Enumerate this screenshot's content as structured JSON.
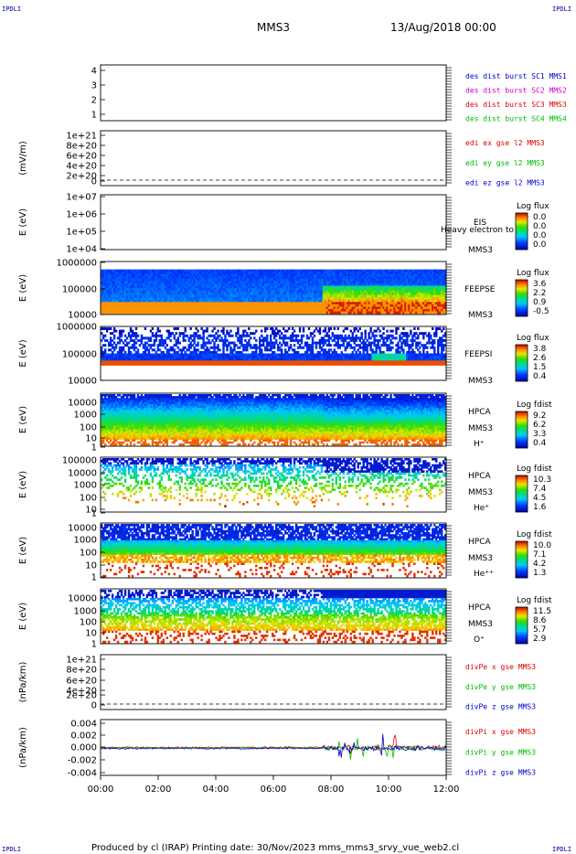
{
  "header": {
    "corner_left_top": "IPDLI",
    "corner_right_top": "IPDLI",
    "corner_left_bottom": "IPDLI",
    "corner_right_bottom": "IPDLI",
    "spacecraft": "MMS3",
    "datetime": "13/Aug/2018 00:00"
  },
  "footer": {
    "text": "Produced by cl (IRAP)   Printing date: 30/Nov/2023   mms_mms3_srvy_vue_web2.cl"
  },
  "colors": {
    "sc1": "#0000cc",
    "sc2": "#cc00cc",
    "sc3": "#dd0000",
    "sc4": "#00bb00",
    "x": "#dd0000",
    "y": "#00bb00",
    "z": "#0000cc",
    "frame": "#000000"
  },
  "chart_data": [
    {
      "id": "p1",
      "type": "line",
      "ylabel": "",
      "yticks": [
        "4",
        "3",
        "2",
        "1"
      ],
      "legend": [
        {
          "label": "des dist burst SC1 MMS1",
          "color": "#0000cc"
        },
        {
          "label": "des dist burst SC2 MMS2",
          "color": "#cc00cc"
        },
        {
          "label": "des dist burst SC3 MMS3",
          "color": "#dd0000"
        },
        {
          "label": "des dist burst SC4 MMS4",
          "color": "#00bb00"
        }
      ]
    },
    {
      "id": "p2",
      "type": "line",
      "ylabel": "(mV/m)",
      "yticks": [
        "1e+21",
        "8e+20",
        "6e+20",
        "4e+20",
        "2e+20",
        "0"
      ],
      "legend": [
        {
          "label": "edi ex gse l2 MMS3",
          "color": "#dd0000"
        },
        {
          "label": "edi ey gse l2 MMS3",
          "color": "#00bb00"
        },
        {
          "label": "edi ez gse l2 MMS3",
          "color": "#0000cc"
        }
      ]
    },
    {
      "id": "p3",
      "type": "heatmap",
      "ylabel": "E (eV)",
      "yticks": [
        "1e+07",
        "1e+06",
        "1e+05",
        "1e+04"
      ],
      "side_labels": [
        "EIS",
        "MMS3"
      ],
      "overlay": "Heavy electron to",
      "colorbar": {
        "title": "Log flux",
        "ticks": [
          "0.0",
          "0.0",
          "0.0",
          "0.0"
        ]
      }
    },
    {
      "id": "p4",
      "type": "heatmap",
      "ylabel": "E (eV)",
      "yticks": [
        "1000000",
        "100000",
        "10000"
      ],
      "side_labels": [
        "FEEPSE",
        "MMS3"
      ],
      "colorbar": {
        "title": "Log flux",
        "ticks": [
          "3.6",
          "2.2",
          "0.9",
          "-0.5"
        ]
      }
    },
    {
      "id": "p5",
      "type": "heatmap",
      "ylabel": "E (eV)",
      "yticks": [
        "1000000",
        "100000",
        "10000"
      ],
      "side_labels": [
        "FEEPSI",
        "MMS3"
      ],
      "colorbar": {
        "title": "Log flux",
        "ticks": [
          "3.8",
          "2.6",
          "1.5",
          "0.4"
        ]
      }
    },
    {
      "id": "p6",
      "type": "heatmap",
      "ylabel": "E (eV)",
      "yticks": [
        "10000",
        "1000",
        "100",
        "10",
        "1"
      ],
      "side_labels": [
        "HPCA",
        "MMS3",
        "H⁺"
      ],
      "colorbar": {
        "title": "Log fdist",
        "ticks": [
          "9.2",
          "6.2",
          "3.3",
          "0.4"
        ]
      }
    },
    {
      "id": "p7",
      "type": "heatmap",
      "ylabel": "E (eV)",
      "yticks": [
        "100000",
        "10000",
        "1000",
        "100",
        "10",
        "1"
      ],
      "side_labels": [
        "HPCA",
        "MMS3",
        "He⁺"
      ],
      "colorbar": {
        "title": "Log fdist",
        "ticks": [
          "10.3",
          "7.4",
          "4.5",
          "1.6"
        ]
      }
    },
    {
      "id": "p8",
      "type": "heatmap",
      "ylabel": "E (eV)",
      "yticks": [
        "10000",
        "1000",
        "100",
        "10",
        "1"
      ],
      "side_labels": [
        "HPCA",
        "MMS3",
        "He⁺⁺"
      ],
      "colorbar": {
        "title": "Log fdist",
        "ticks": [
          "10.0",
          "7.1",
          "4.2",
          "1.3"
        ]
      }
    },
    {
      "id": "p9",
      "type": "heatmap",
      "ylabel": "E (eV)",
      "yticks": [
        "10000",
        "1000",
        "100",
        "10",
        "1"
      ],
      "side_labels": [
        "HPCA",
        "MMS3",
        "O⁺"
      ],
      "colorbar": {
        "title": "Log fdist",
        "ticks": [
          "11.5",
          "8.6",
          "5.7",
          "2.9"
        ]
      }
    },
    {
      "id": "p10",
      "type": "line",
      "ylabel": "(nPa/km)",
      "yticks": [
        "1e+21",
        "8e+20",
        "6e+20",
        "4e+20",
        "2e+20",
        "0"
      ],
      "legend": [
        {
          "label": "divPe x gse MMS3",
          "color": "#dd0000"
        },
        {
          "label": "divPe y gse MMS3",
          "color": "#00bb00"
        },
        {
          "label": "divPe z gse MMS3",
          "color": "#0000cc"
        }
      ]
    },
    {
      "id": "p11",
      "type": "line",
      "ylabel": "(nPa/km)",
      "yticks": [
        "0.004",
        "0.002",
        "0.000",
        "-0.002",
        "-0.004"
      ],
      "ylim": [
        -0.004,
        0.004
      ],
      "legend": [
        {
          "label": "divPi x gse MMS3",
          "color": "#dd0000"
        },
        {
          "label": "divPi y gse MMS3",
          "color": "#00bb00"
        },
        {
          "label": "divPi z gse MMS3",
          "color": "#0000cc"
        }
      ]
    }
  ],
  "xaxis": {
    "ticks": [
      "00:00",
      "02:00",
      "04:00",
      "06:00",
      "08:00",
      "10:00",
      "12:00"
    ]
  }
}
